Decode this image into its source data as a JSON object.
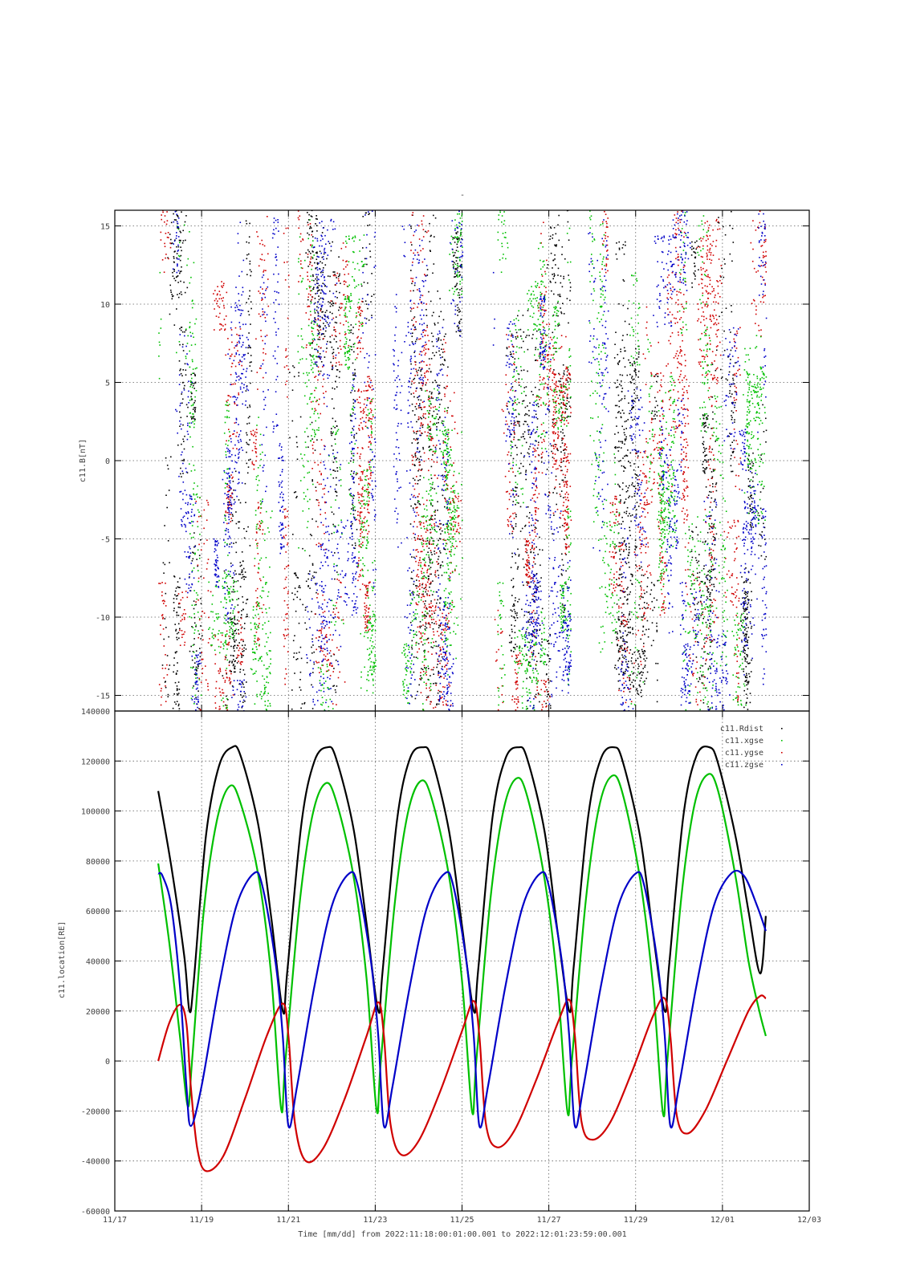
{
  "plot_title": "-",
  "x_axis_label": "Time [mm/dd]  from 2022:11:18:00:01:00.001  to  2022:12:01:23:59:00.001",
  "x_ticks": [
    "11/17",
    "11/19",
    "11/21",
    "11/23",
    "11/25",
    "11/27",
    "11/29",
    "12/01",
    "12/03"
  ],
  "x_tick_days": [
    0,
    2,
    4,
    6,
    8,
    10,
    12,
    14,
    16
  ],
  "x_range_days": [
    0,
    16
  ],
  "data_range_days": [
    1.0007,
    14.9993
  ],
  "colors": {
    "black": "#000000",
    "red": "#d00000",
    "green": "#00c000",
    "blue": "#0000c8"
  },
  "chart_data": [
    {
      "type": "scatter",
      "ylabel": "c11.B[nT]",
      "ylim": [
        -16,
        16
      ],
      "yticks": [
        -15,
        -10,
        -5,
        0,
        5,
        10,
        15
      ],
      "grid": true,
      "note_series": "4 scatter series (black, red, green, blue) of magnetic field components; values are dense noisy point clouds",
      "series": [
        {
          "color": "#000000",
          "envelope_days": [
            [
              1.0,
              3.5
            ],
            [
              4.0,
              6.0
            ],
            [
              6.8,
              8.0
            ],
            [
              9.0,
              10.5
            ],
            [
              11.5,
              12.5
            ],
            [
              13.2,
              15.0
            ]
          ],
          "y_range": [
            -16,
            16
          ]
        },
        {
          "color": "#d00000",
          "envelope_days": [
            [
              1.0,
              4.0
            ],
            [
              4.2,
              6.0
            ],
            [
              6.8,
              8.0
            ],
            [
              8.7,
              10.5
            ],
            [
              11.0,
              13.2
            ],
            [
              13.0,
              15.0
            ]
          ],
          "y_range": [
            -16,
            16
          ]
        },
        {
          "color": "#00c000",
          "envelope_days": [
            [
              1.0,
              4.0
            ],
            [
              4.2,
              6.0
            ],
            [
              6.6,
              8.0
            ],
            [
              8.8,
              10.5
            ],
            [
              10.9,
              13.0
            ],
            [
              13.0,
              15.0
            ]
          ],
          "y_range": [
            -16,
            16
          ]
        },
        {
          "color": "#0000c8",
          "envelope_days": [
            [
              1.0,
              4.0
            ],
            [
              4.2,
              6.0
            ],
            [
              6.4,
              8.0
            ],
            [
              8.7,
              10.5
            ],
            [
              10.9,
              13.2
            ],
            [
              13.0,
              15.0
            ]
          ],
          "y_range": [
            -16,
            16
          ]
        }
      ]
    },
    {
      "type": "line",
      "ylabel": "c11.location[RE]",
      "ylim": [
        -60000,
        140000
      ],
      "yticks": [
        -60000,
        -40000,
        -20000,
        0,
        20000,
        40000,
        60000,
        80000,
        100000,
        120000,
        140000
      ],
      "grid": true,
      "legend_position": "top-right",
      "legend": [
        "c11.Rdist",
        "c11.xgse",
        "c11.ygse",
        "c11.zgse"
      ],
      "series": [
        {
          "name": "c11.Rdist",
          "color": "#000000",
          "x": [
            1.0,
            1.3,
            1.6,
            1.72,
            1.82,
            2.1,
            2.4,
            2.7,
            2.9,
            3.3,
            3.6,
            3.87,
            3.97,
            4.3,
            4.6,
            4.9,
            5.1,
            5.5,
            5.8,
            6.07,
            6.17,
            6.5,
            6.8,
            7.1,
            7.3,
            7.7,
            8.0,
            8.27,
            8.37,
            8.7,
            9.0,
            9.3,
            9.5,
            9.9,
            10.2,
            10.47,
            10.57,
            10.9,
            11.2,
            11.5,
            11.7,
            12.1,
            12.4,
            12.67,
            12.77,
            13.1,
            13.4,
            13.7,
            13.9,
            14.3,
            14.6,
            14.87,
            15.0
          ],
          "y": [
            108000,
            78000,
            42000,
            20000,
            32000,
            90000,
            118000,
            125500,
            122000,
            95000,
            58000,
            20000,
            35000,
            95000,
            120000,
            125500,
            121000,
            93000,
            55000,
            20000,
            36000,
            96000,
            121000,
            125500,
            121000,
            92000,
            54000,
            20000,
            36000,
            97000,
            121000,
            125500,
            121000,
            92000,
            52000,
            20000,
            37000,
            97000,
            121000,
            125500,
            120000,
            90000,
            51000,
            20000,
            38000,
            98000,
            122000,
            125500,
            119000,
            90000,
            60000,
            35000,
            58000
          ]
        },
        {
          "name": "c11.xgse",
          "color": "#00c000",
          "x": [
            1.0,
            1.25,
            1.5,
            1.68,
            1.78,
            2.05,
            2.35,
            2.65,
            2.9,
            3.3,
            3.6,
            3.83,
            3.93,
            4.25,
            4.55,
            4.85,
            5.1,
            5.5,
            5.8,
            6.03,
            6.13,
            6.45,
            6.75,
            7.05,
            7.3,
            7.7,
            8.0,
            8.23,
            8.33,
            8.65,
            8.95,
            9.25,
            9.5,
            9.9,
            10.2,
            10.43,
            10.53,
            10.85,
            11.15,
            11.45,
            11.7,
            12.1,
            12.4,
            12.63,
            12.73,
            13.05,
            13.35,
            13.65,
            13.9,
            14.3,
            14.6,
            14.85,
            15.0
          ],
          "y": [
            79000,
            48000,
            10000,
            -18000,
            0,
            60000,
            96000,
            110000,
            103000,
            75000,
            35000,
            -19000,
            0,
            62000,
            98000,
            111000,
            104000,
            74000,
            33000,
            -19500,
            0,
            63000,
            99000,
            112000,
            105000,
            74000,
            32000,
            -20000,
            0,
            64000,
            100000,
            113000,
            106000,
            73000,
            31000,
            -20500,
            0,
            64000,
            101000,
            114000,
            107000,
            73000,
            30000,
            -21000,
            0,
            65000,
            102000,
            114500,
            108000,
            74000,
            40000,
            20000,
            10000
          ]
        },
        {
          "name": "c11.ygse",
          "color": "#d00000",
          "x": [
            1.0,
            1.25,
            1.5,
            1.65,
            1.75,
            1.9,
            2.1,
            2.5,
            3.0,
            3.5,
            3.87,
            4.0,
            4.15,
            4.4,
            4.8,
            5.3,
            5.8,
            6.07,
            6.2,
            6.35,
            6.6,
            7.0,
            7.5,
            8.0,
            8.27,
            8.4,
            8.55,
            8.8,
            9.2,
            9.7,
            10.2,
            10.47,
            10.6,
            10.75,
            11.0,
            11.4,
            11.9,
            12.4,
            12.67,
            12.8,
            12.95,
            13.2,
            13.6,
            14.1,
            14.6,
            14.87,
            15.0
          ],
          "y": [
            0,
            15000,
            22500,
            15000,
            -10000,
            -35000,
            -44000,
            -38000,
            -15000,
            10000,
            23000,
            10000,
            -25000,
            -40000,
            -35000,
            -15000,
            10000,
            23500,
            10000,
            -25000,
            -37500,
            -32000,
            -12000,
            12000,
            24000,
            10000,
            -25000,
            -34500,
            -28000,
            -8000,
            15000,
            24500,
            10000,
            -24000,
            -31500,
            -25000,
            -5000,
            18000,
            25000,
            10000,
            -22000,
            -29000,
            -20000,
            0,
            20000,
            26000,
            25000
          ]
        },
        {
          "name": "c11.zgse",
          "color": "#0000c8",
          "x": [
            1.0,
            1.1,
            1.3,
            1.5,
            1.65,
            1.75,
            2.0,
            2.4,
            2.8,
            3.2,
            3.4,
            3.7,
            3.87,
            4.0,
            4.2,
            4.6,
            5.0,
            5.4,
            5.6,
            5.9,
            6.07,
            6.2,
            6.4,
            6.8,
            7.2,
            7.6,
            7.8,
            8.1,
            8.27,
            8.4,
            8.6,
            9.0,
            9.4,
            9.8,
            10.0,
            10.3,
            10.47,
            10.6,
            10.8,
            11.2,
            11.6,
            12.0,
            12.2,
            12.5,
            12.67,
            12.8,
            13.0,
            13.4,
            13.8,
            14.2,
            14.5,
            14.8,
            15.0
          ],
          "y": [
            75000,
            74000,
            62000,
            30000,
            -10000,
            -26000,
            -10000,
            30000,
            62000,
            75000,
            70000,
            40000,
            10000,
            -26000,
            -10000,
            30000,
            62000,
            75000,
            70000,
            40000,
            10000,
            -26000,
            -10000,
            30000,
            62000,
            75000,
            70000,
            40000,
            10000,
            -26000,
            -10000,
            30000,
            62000,
            75000,
            70000,
            40000,
            10000,
            -26000,
            -10000,
            30000,
            62000,
            75000,
            70000,
            40000,
            10000,
            -26000,
            -10000,
            30000,
            62000,
            75000,
            74000,
            62000,
            52000
          ]
        }
      ]
    }
  ]
}
